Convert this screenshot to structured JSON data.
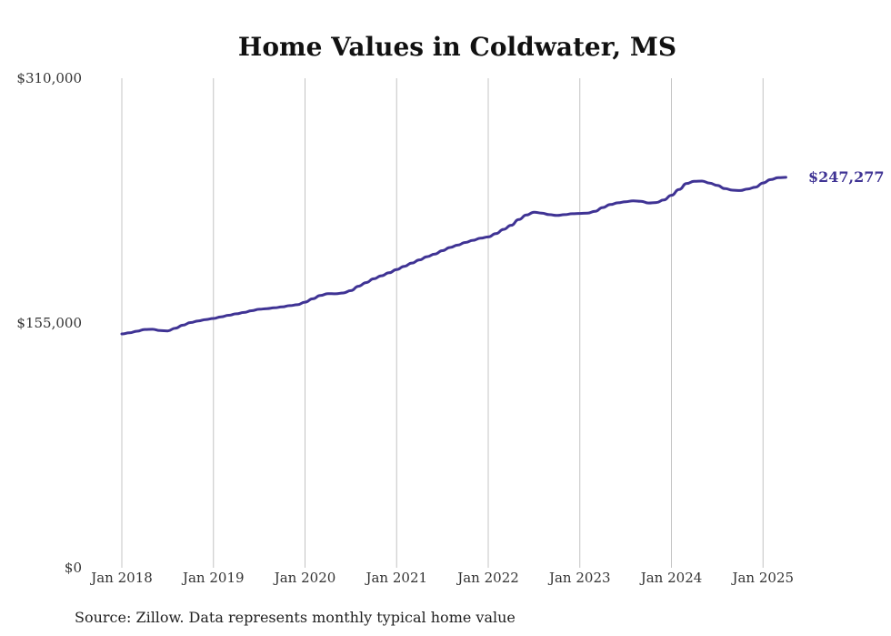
{
  "chart_data": {
    "type": "line",
    "title": "Home Values in Coldwater, MS",
    "xlabel": "",
    "ylabel": "",
    "ylim": [
      0,
      310000
    ],
    "y_ticks": [
      {
        "value": 0,
        "label": "$0"
      },
      {
        "value": 155000,
        "label": "$155,000"
      },
      {
        "value": 310000,
        "label": "$310,000"
      }
    ],
    "x_ticks": [
      {
        "value": "2018-01",
        "label": "Jan 2018"
      },
      {
        "value": "2019-01",
        "label": "Jan 2019"
      },
      {
        "value": "2020-01",
        "label": "Jan 2020"
      },
      {
        "value": "2021-01",
        "label": "Jan 2021"
      },
      {
        "value": "2022-01",
        "label": "Jan 2022"
      },
      {
        "value": "2023-01",
        "label": "Jan 2023"
      },
      {
        "value": "2024-01",
        "label": "Jan 2024"
      },
      {
        "value": "2025-01",
        "label": "Jan 2025"
      }
    ],
    "grid": "vertical",
    "line_color": "#3f3394",
    "end_label": "$247,277",
    "series": [
      {
        "x": [
          "2018-01",
          "2018-02",
          "2018-03",
          "2018-04",
          "2018-05",
          "2018-06",
          "2018-07",
          "2018-08",
          "2018-09",
          "2018-10",
          "2018-11",
          "2018-12",
          "2019-01",
          "2019-02",
          "2019-03",
          "2019-04",
          "2019-05",
          "2019-06",
          "2019-07",
          "2019-08",
          "2019-09",
          "2019-10",
          "2019-11",
          "2019-12",
          "2020-01",
          "2020-02",
          "2020-03",
          "2020-04",
          "2020-05",
          "2020-06",
          "2020-07",
          "2020-08",
          "2020-09",
          "2020-10",
          "2020-11",
          "2020-12",
          "2021-01",
          "2021-02",
          "2021-03",
          "2021-04",
          "2021-05",
          "2021-06",
          "2021-07",
          "2021-08",
          "2021-09",
          "2021-10",
          "2021-11",
          "2021-12",
          "2022-01",
          "2022-02",
          "2022-03",
          "2022-04",
          "2022-05",
          "2022-06",
          "2022-07",
          "2022-08",
          "2022-09",
          "2022-10",
          "2022-11",
          "2022-12",
          "2023-01",
          "2023-02",
          "2023-03",
          "2023-04",
          "2023-05",
          "2023-06",
          "2023-07",
          "2023-08",
          "2023-09",
          "2023-10",
          "2023-11",
          "2023-12",
          "2024-01",
          "2024-02",
          "2024-03",
          "2024-04",
          "2024-05",
          "2024-06",
          "2024-07",
          "2024-08",
          "2024-09",
          "2024-10",
          "2024-11",
          "2024-12",
          "2025-01",
          "2025-02",
          "2025-03",
          "2025-04"
        ],
        "values": [
          148100,
          148800,
          149800,
          150900,
          151000,
          150200,
          150000,
          151700,
          153600,
          155300,
          156300,
          157200,
          157900,
          158900,
          159900,
          160800,
          161700,
          162800,
          163700,
          164100,
          164600,
          165200,
          166000,
          166600,
          168200,
          170300,
          172400,
          173600,
          173500,
          174000,
          175500,
          178300,
          180600,
          183000,
          184900,
          186800,
          188800,
          190900,
          193000,
          195000,
          197000,
          198700,
          200800,
          202800,
          204300,
          206000,
          207400,
          208700,
          209500,
          211600,
          214300,
          216900,
          220500,
          223400,
          225200,
          224600,
          223600,
          223100,
          223600,
          224200,
          224400,
          224600,
          225700,
          228100,
          230000,
          231100,
          231800,
          232400,
          232100,
          231000,
          231300,
          232900,
          235900,
          239600,
          243400,
          244800,
          244900,
          243600,
          242100,
          240100,
          239100,
          238900,
          239900,
          241000,
          243700,
          245800,
          247000,
          247277
        ]
      }
    ]
  },
  "footer": {
    "source": "Source: Zillow. Data represents monthly typical home value"
  }
}
